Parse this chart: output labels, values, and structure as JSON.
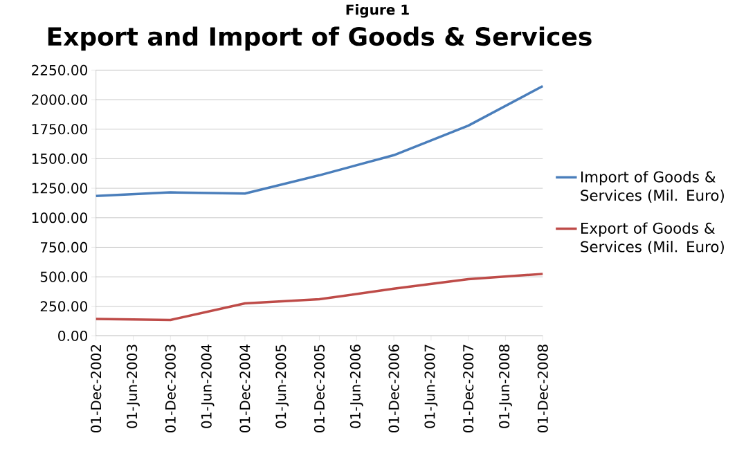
{
  "chart_data": {
    "type": "line",
    "title": "Export and Import of Goods & Services",
    "annotations": [
      "Figure 1"
    ],
    "categories": [
      "01-Dec-2002",
      "01-Jun-2003",
      "01-Dec-2003",
      "01-Jun-2004",
      "01-Dec-2004",
      "01-Jun-2005",
      "01-Dec-2005",
      "01-Jun-2006",
      "01-Dec-2006",
      "01-Jun-2007",
      "01-Dec-2007",
      "01-Jun-2008",
      "01-Dec-2008"
    ],
    "series": [
      {
        "name": "Import of Goods & Services (Mil. Euro)",
        "color": "#4a7ebb",
        "values": [
          1185,
          null,
          1215,
          null,
          1205,
          null,
          1360,
          null,
          1530,
          null,
          1780,
          null,
          2115
        ]
      },
      {
        "name": "Export of Goods & Services (Mil. Euro)",
        "color": "#be4b48",
        "values": [
          143,
          null,
          135,
          null,
          275,
          null,
          310,
          null,
          400,
          null,
          480,
          null,
          525
        ]
      }
    ],
    "ylim": [
      0,
      2250
    ],
    "yticks": [
      {
        "value": 0,
        "label": "0.00"
      },
      {
        "value": 250,
        "label": "250.00"
      },
      {
        "value": 500,
        "label": "500.00"
      },
      {
        "value": 750,
        "label": "750.00"
      },
      {
        "value": 1000,
        "label": "1000.00"
      },
      {
        "value": 1250,
        "label": "1250.00"
      },
      {
        "value": 1500,
        "label": "1500.00"
      },
      {
        "value": 1750,
        "label": "1750.00"
      },
      {
        "value": 2000,
        "label": "2000.00"
      },
      {
        "value": 2250,
        "label": "2250.00"
      }
    ],
    "grid": "y",
    "legend": "right",
    "marker": "none",
    "line_style": "solid"
  }
}
